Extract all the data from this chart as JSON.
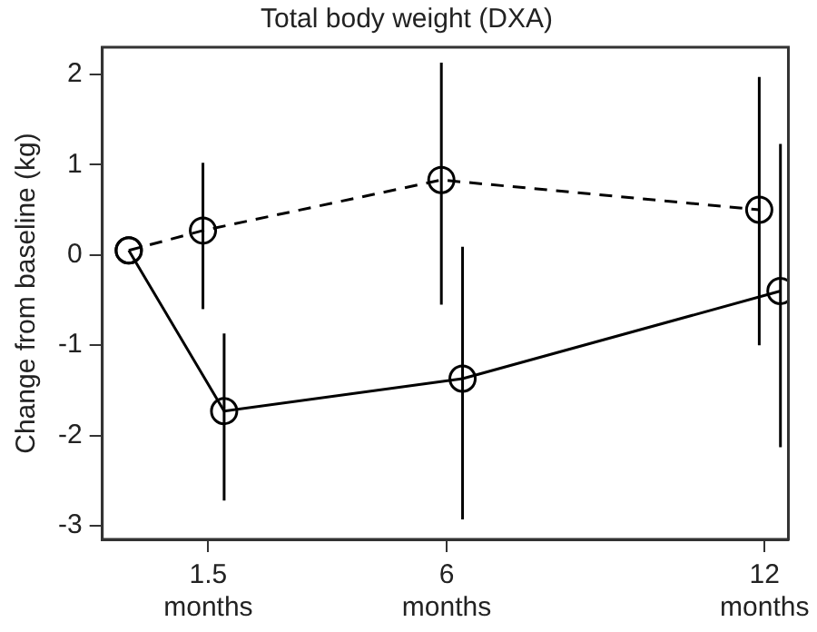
{
  "chart_data": {
    "type": "line",
    "title": "Total body weight (DXA)",
    "ylabel": "Change from baseline (kg)",
    "xlim": [
      -0.5,
      12.45
    ],
    "xticks": [
      {
        "value": 1.5,
        "label": "1.5 months"
      },
      {
        "value": 6,
        "label": "6 months"
      },
      {
        "value": 12,
        "label": "12 months"
      }
    ],
    "ylim": [
      -3.15,
      2.3
    ],
    "yticks": [
      -3,
      -2,
      -1,
      0,
      1,
      2
    ],
    "grid": false,
    "legend": false,
    "marker": "circle",
    "series": [
      {
        "color": "#000000",
        "line_style": "dashed",
        "x": [
          0,
          1.4,
          5.9,
          11.9
        ],
        "values": [
          0.05,
          0.27,
          0.83,
          0.5
        ],
        "errors": [
          null,
          [
            -0.6,
            1.02
          ],
          [
            -0.55,
            2.13
          ],
          [
            -1.0,
            1.97
          ]
        ]
      },
      {
        "color": "#000000",
        "line_style": "solid",
        "x": [
          0,
          1.8,
          6.3,
          12.3
        ],
        "values": [
          0.05,
          -1.73,
          -1.37,
          -0.4
        ],
        "errors": [
          null,
          [
            -2.72,
            -0.87
          ],
          [
            -2.93,
            0.09
          ],
          [
            -2.13,
            1.23
          ]
        ]
      }
    ]
  }
}
